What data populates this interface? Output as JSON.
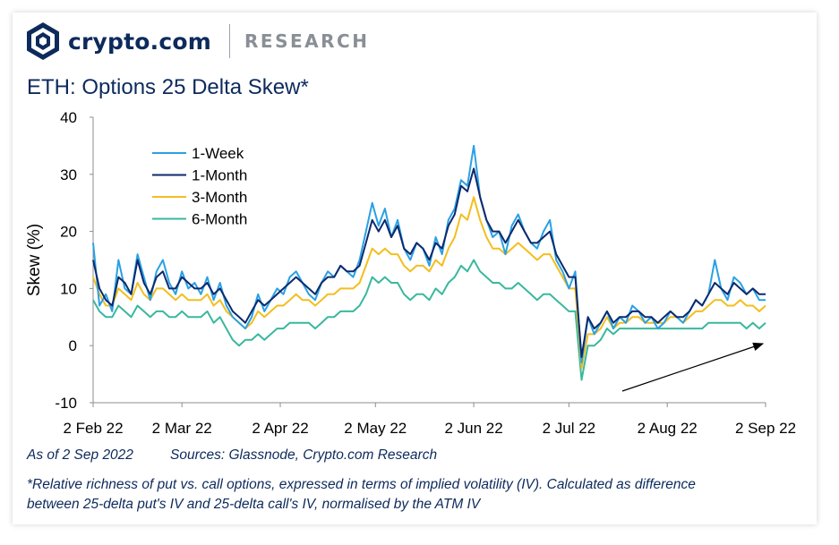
{
  "brand": {
    "name": "crypto.com",
    "section": "RESEARCH"
  },
  "title": "ETH: Options 25 Delta Skew*",
  "footer": {
    "as_of": "As of 2 Sep 2022",
    "sources": "Sources: Glassnode, Crypto.com Research",
    "note_line1": "*Relative richness of put vs. call options, expressed in terms of implied volatility (IV). Calculated as difference",
    "note_line2": "between 25-delta put's IV and 25-delta call's IV, normalised by the ATM IV"
  },
  "colors": {
    "brand": "#0d2a5c",
    "week": "#2aa1e3",
    "month": "#0c2a6e",
    "month3": "#f3be1f",
    "month6": "#39b89e"
  },
  "chart_data": {
    "type": "line",
    "ylabel": "Skew (%)",
    "xlabel": "",
    "ylim": [
      -10,
      40
    ],
    "yticks": [
      "40",
      "30",
      "20",
      "10",
      "0",
      "-10"
    ],
    "ytick_values": [
      40,
      30,
      20,
      10,
      0,
      -10
    ],
    "x_range_days": [
      0,
      212
    ],
    "xticks": [
      {
        "label": "2 Feb 22",
        "day": 0
      },
      {
        "label": "2 Mar 22",
        "day": 28
      },
      {
        "label": "2 Apr 22",
        "day": 59
      },
      {
        "label": "2 May 22",
        "day": 89
      },
      {
        "label": "2 Jun 22",
        "day": 120
      },
      {
        "label": "2 Jul 22",
        "day": 150
      },
      {
        "label": "2 Aug 22",
        "day": 181
      },
      {
        "label": "2 Sep 22",
        "day": 212
      }
    ],
    "legend": [
      "1-Week",
      "1-Month",
      "3-Month",
      "6-Month"
    ],
    "legend_position": "top-left",
    "annotation": "upward trend arrow from late Jul to early Sep",
    "series": [
      {
        "name": "1-Week",
        "days": [
          0,
          2,
          4,
          6,
          8,
          10,
          12,
          14,
          16,
          18,
          20,
          22,
          24,
          26,
          28,
          30,
          32,
          34,
          36,
          38,
          40,
          42,
          44,
          46,
          48,
          50,
          52,
          54,
          56,
          58,
          60,
          62,
          64,
          66,
          68,
          70,
          72,
          74,
          76,
          78,
          80,
          82,
          84,
          86,
          88,
          90,
          92,
          94,
          96,
          98,
          100,
          102,
          104,
          106,
          108,
          110,
          112,
          114,
          116,
          118,
          120,
          122,
          124,
          126,
          128,
          130,
          132,
          134,
          136,
          138,
          140,
          142,
          144,
          146,
          148,
          150,
          152,
          154,
          156,
          158,
          160,
          162,
          164,
          166,
          168,
          170,
          172,
          174,
          176,
          178,
          180,
          182,
          184,
          186,
          188,
          190,
          192,
          194,
          196,
          198,
          200,
          202,
          204,
          206,
          208,
          210,
          212
        ],
        "values": [
          18,
          7,
          9,
          6,
          15,
          10,
          9,
          16,
          12,
          8,
          13,
          15,
          11,
          9,
          13,
          10,
          11,
          9,
          12,
          8,
          11,
          7,
          5,
          4,
          3,
          5,
          9,
          6,
          8,
          10,
          9,
          12,
          13,
          11,
          9,
          8,
          11,
          13,
          12,
          14,
          13,
          12,
          15,
          20,
          25,
          21,
          24,
          19,
          22,
          17,
          15,
          18,
          17,
          14,
          19,
          16,
          22,
          24,
          29,
          28,
          35,
          26,
          22,
          19,
          20,
          16,
          21,
          23,
          20,
          18,
          17,
          20,
          22,
          15,
          13,
          10,
          13,
          -3,
          5,
          2,
          4,
          6,
          3,
          5,
          4,
          7,
          6,
          4,
          5,
          3,
          4,
          6,
          5,
          4,
          6,
          8,
          7,
          9,
          15,
          10,
          8,
          12,
          11,
          9,
          10,
          8,
          8
        ]
      },
      {
        "name": "1-Month",
        "days": [
          0,
          2,
          4,
          6,
          8,
          10,
          12,
          14,
          16,
          18,
          20,
          22,
          24,
          26,
          28,
          30,
          32,
          34,
          36,
          38,
          40,
          42,
          44,
          46,
          48,
          50,
          52,
          54,
          56,
          58,
          60,
          62,
          64,
          66,
          68,
          70,
          72,
          74,
          76,
          78,
          80,
          82,
          84,
          86,
          88,
          90,
          92,
          94,
          96,
          98,
          100,
          102,
          104,
          106,
          108,
          110,
          112,
          114,
          116,
          118,
          120,
          122,
          124,
          126,
          128,
          130,
          132,
          134,
          136,
          138,
          140,
          142,
          144,
          146,
          148,
          150,
          152,
          154,
          156,
          158,
          160,
          162,
          164,
          166,
          168,
          170,
          172,
          174,
          176,
          178,
          180,
          182,
          184,
          186,
          188,
          190,
          192,
          194,
          196,
          198,
          200,
          202,
          204,
          206,
          208,
          210,
          212
        ],
        "values": [
          15,
          10,
          8,
          7,
          12,
          11,
          9,
          15,
          11,
          9,
          12,
          13,
          10,
          10,
          12,
          11,
          10,
          10,
          11,
          9,
          10,
          8,
          6,
          5,
          4,
          6,
          8,
          7,
          8,
          9,
          10,
          11,
          12,
          11,
          10,
          9,
          11,
          12,
          12,
          14,
          13,
          13,
          14,
          18,
          22,
          20,
          22,
          19,
          21,
          17,
          16,
          18,
          17,
          15,
          18,
          17,
          21,
          23,
          28,
          27,
          31,
          26,
          22,
          20,
          20,
          18,
          20,
          22,
          20,
          18,
          18,
          19,
          20,
          16,
          14,
          12,
          12,
          -2,
          5,
          3,
          4,
          6,
          4,
          5,
          5,
          6,
          6,
          5,
          5,
          4,
          5,
          6,
          5,
          5,
          6,
          8,
          7,
          9,
          11,
          10,
          9,
          11,
          10,
          9,
          10,
          9,
          9
        ]
      },
      {
        "name": "3-Month",
        "days": [
          0,
          2,
          4,
          6,
          8,
          10,
          12,
          14,
          16,
          18,
          20,
          22,
          24,
          26,
          28,
          30,
          32,
          34,
          36,
          38,
          40,
          42,
          44,
          46,
          48,
          50,
          52,
          54,
          56,
          58,
          60,
          62,
          64,
          66,
          68,
          70,
          72,
          74,
          76,
          78,
          80,
          82,
          84,
          86,
          88,
          90,
          92,
          94,
          96,
          98,
          100,
          102,
          104,
          106,
          108,
          110,
          112,
          114,
          116,
          118,
          120,
          122,
          124,
          126,
          128,
          130,
          132,
          134,
          136,
          138,
          140,
          142,
          144,
          146,
          148,
          150,
          152,
          154,
          156,
          158,
          160,
          162,
          164,
          166,
          168,
          170,
          172,
          174,
          176,
          178,
          180,
          182,
          184,
          186,
          188,
          190,
          192,
          194,
          196,
          198,
          200,
          202,
          204,
          206,
          208,
          210,
          212
        ],
        "values": [
          12,
          9,
          7,
          7,
          10,
          9,
          8,
          11,
          9,
          8,
          10,
          10,
          9,
          8,
          9,
          8,
          8,
          8,
          9,
          7,
          8,
          6,
          5,
          4,
          3,
          4,
          6,
          5,
          6,
          7,
          7,
          8,
          9,
          8,
          8,
          7,
          8,
          9,
          9,
          10,
          10,
          10,
          11,
          14,
          17,
          16,
          17,
          16,
          16,
          14,
          13,
          14,
          14,
          13,
          15,
          14,
          17,
          19,
          23,
          22,
          26,
          22,
          19,
          17,
          17,
          16,
          17,
          18,
          17,
          16,
          15,
          16,
          16,
          14,
          12,
          10,
          10,
          -4,
          2,
          2,
          3,
          5,
          3,
          4,
          4,
          5,
          5,
          4,
          4,
          4,
          4,
          5,
          5,
          4,
          5,
          6,
          6,
          7,
          8,
          8,
          7,
          7,
          8,
          7,
          7,
          6,
          7
        ]
      },
      {
        "name": "6-Month",
        "days": [
          0,
          2,
          4,
          6,
          8,
          10,
          12,
          14,
          16,
          18,
          20,
          22,
          24,
          26,
          28,
          30,
          32,
          34,
          36,
          38,
          40,
          42,
          44,
          46,
          48,
          50,
          52,
          54,
          56,
          58,
          60,
          62,
          64,
          66,
          68,
          70,
          72,
          74,
          76,
          78,
          80,
          82,
          84,
          86,
          88,
          90,
          92,
          94,
          96,
          98,
          100,
          102,
          104,
          106,
          108,
          110,
          112,
          114,
          116,
          118,
          120,
          122,
          124,
          126,
          128,
          130,
          132,
          134,
          136,
          138,
          140,
          142,
          144,
          146,
          148,
          150,
          152,
          154,
          156,
          158,
          160,
          162,
          164,
          166,
          168,
          170,
          172,
          174,
          176,
          178,
          180,
          182,
          184,
          186,
          188,
          190,
          192,
          194,
          196,
          198,
          200,
          202,
          204,
          206,
          208,
          210,
          212
        ],
        "values": [
          8,
          6,
          5,
          5,
          7,
          6,
          5,
          7,
          6,
          5,
          6,
          6,
          5,
          5,
          6,
          5,
          5,
          5,
          6,
          4,
          5,
          3,
          1,
          0,
          1,
          1,
          2,
          1,
          2,
          3,
          3,
          4,
          4,
          4,
          4,
          3,
          4,
          5,
          5,
          6,
          6,
          6,
          7,
          9,
          12,
          11,
          12,
          11,
          11,
          9,
          8,
          9,
          9,
          8,
          10,
          9,
          11,
          12,
          14,
          13,
          15,
          13,
          12,
          11,
          11,
          10,
          10,
          11,
          10,
          9,
          8,
          9,
          9,
          8,
          7,
          6,
          6,
          -6,
          0,
          0,
          1,
          3,
          2,
          3,
          3,
          3,
          3,
          3,
          3,
          3,
          3,
          3,
          3,
          3,
          3,
          3,
          3,
          4,
          4,
          4,
          4,
          4,
          4,
          3,
          4,
          3,
          4
        ]
      }
    ]
  }
}
